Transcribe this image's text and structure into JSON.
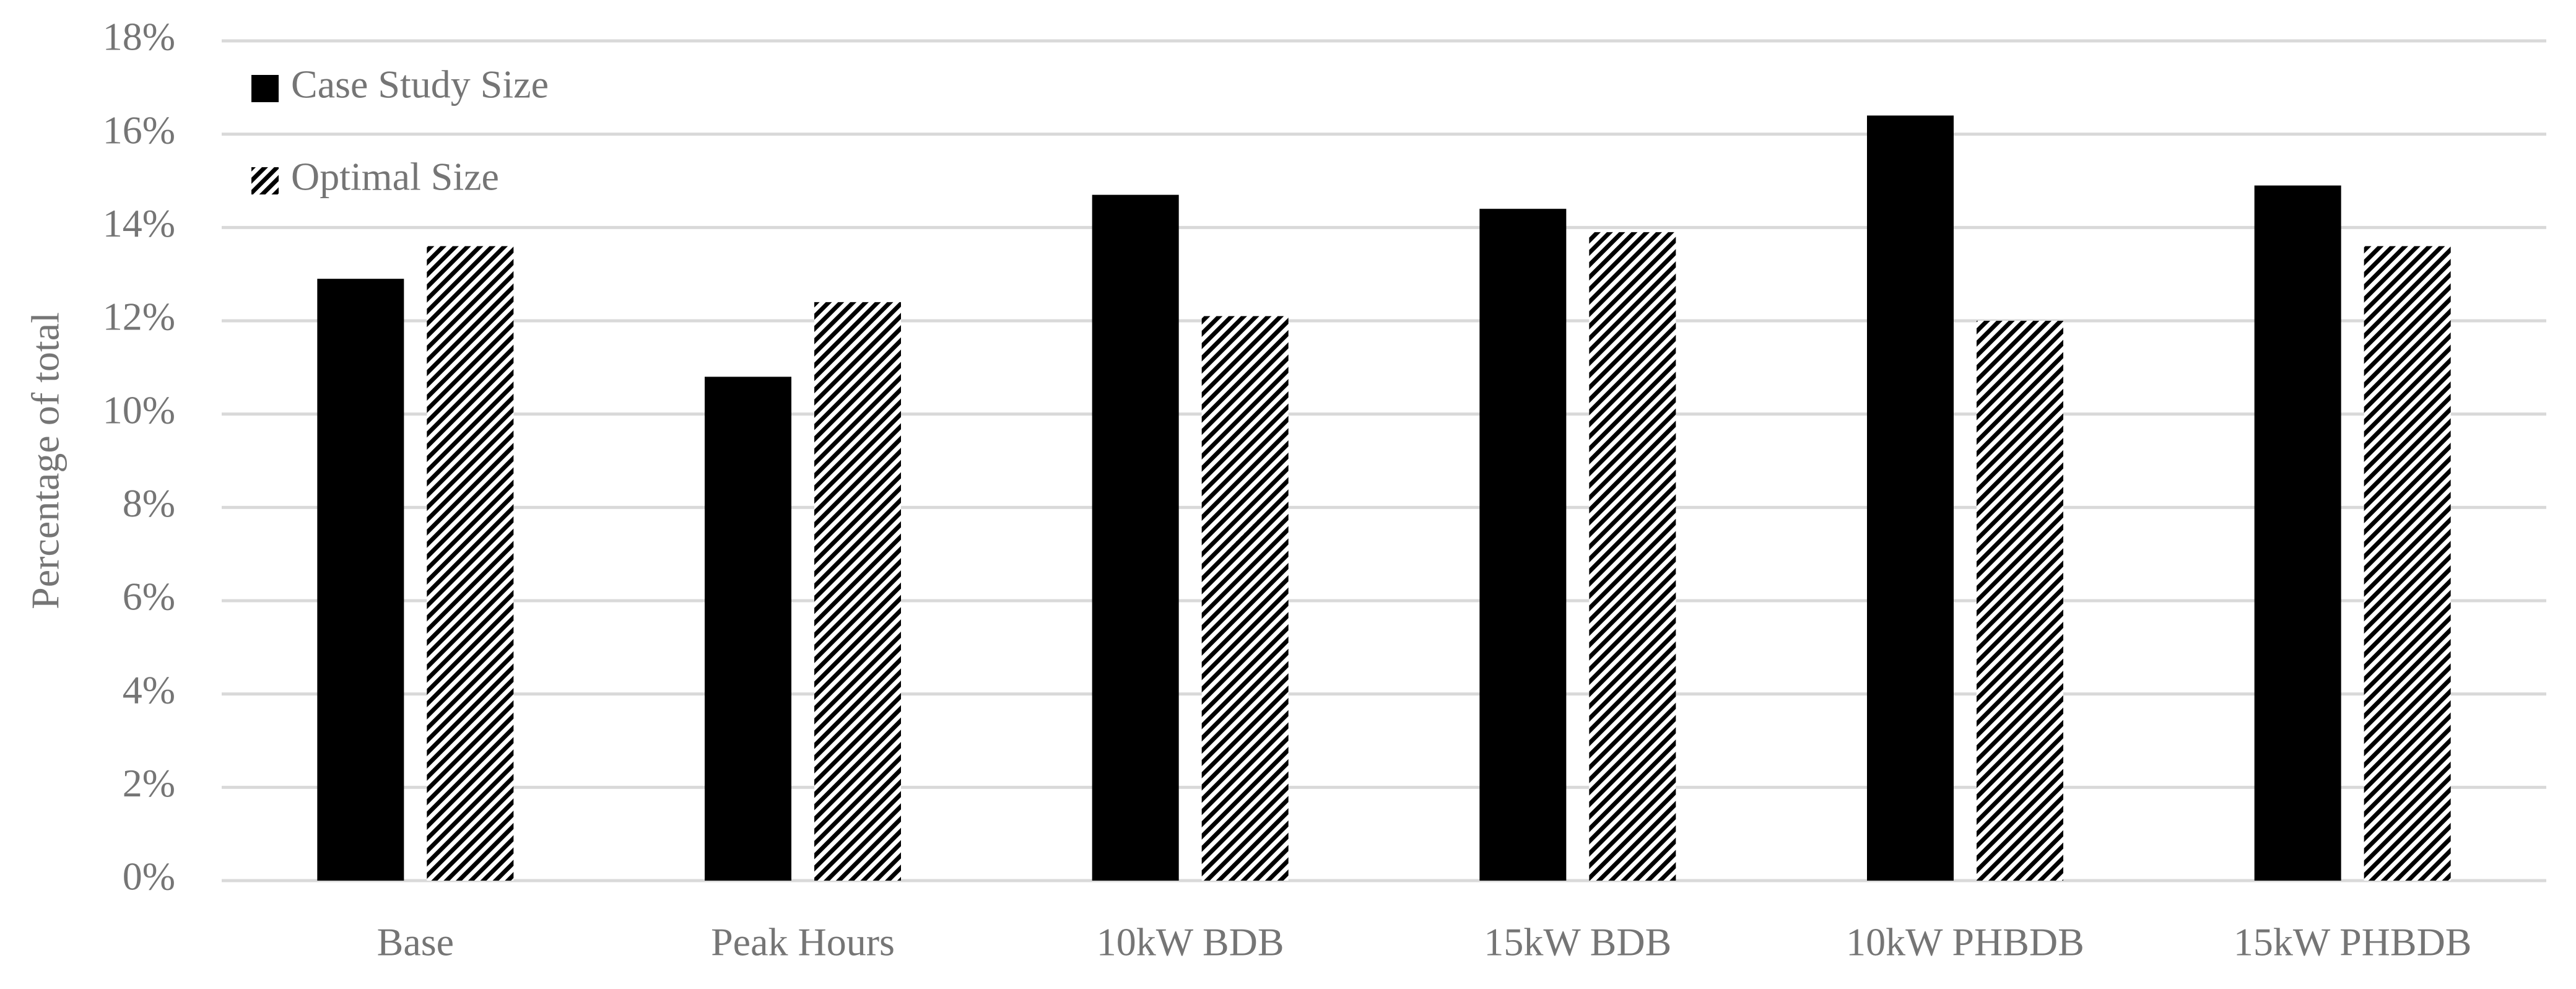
{
  "chart_data": {
    "type": "bar",
    "ylabel": "Percentage of total",
    "categories": [
      "Base",
      "Peak Hours",
      "10kW BDB",
      "15kW BDB",
      "10kW PHBDB",
      "15kW PHBDB"
    ],
    "series": [
      {
        "name": "Case Study Size",
        "color": "#000000",
        "pattern": "solid",
        "values": [
          12.9,
          10.8,
          14.7,
          14.4,
          16.4,
          14.9
        ]
      },
      {
        "name": "Optimal Size",
        "color": "#000000",
        "pattern": "hatch",
        "values": [
          13.6,
          12.4,
          12.1,
          13.9,
          12.0,
          13.6
        ]
      }
    ],
    "ylim": [
      0,
      18
    ],
    "yticks": [
      {
        "value": 0,
        "label": "0%"
      },
      {
        "value": 2,
        "label": "2%"
      },
      {
        "value": 4,
        "label": "4%"
      },
      {
        "value": 6,
        "label": "6%"
      },
      {
        "value": 8,
        "label": "8%"
      },
      {
        "value": 10,
        "label": "10%"
      },
      {
        "value": 12,
        "label": "12%"
      },
      {
        "value": 14,
        "label": "14%"
      },
      {
        "value": 16,
        "label": "16%"
      },
      {
        "value": 18,
        "label": "18%"
      }
    ],
    "grid": true,
    "legend": "top-left"
  }
}
